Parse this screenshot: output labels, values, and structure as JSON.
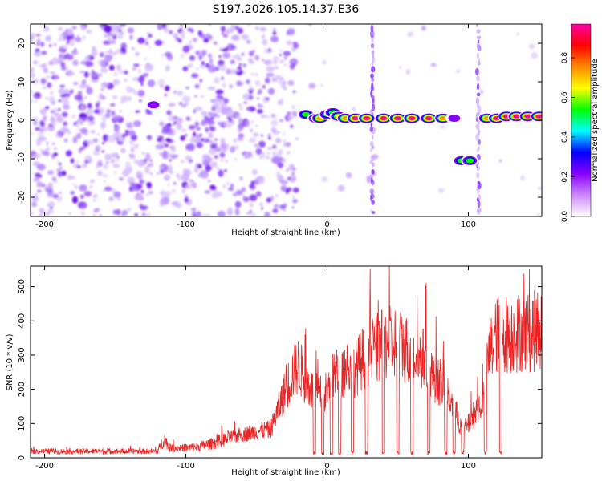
{
  "chart_data": [
    {
      "type": "heatmap",
      "title": "S197.2026.105.14.37.E36",
      "xlabel": "Height of straight line (km)",
      "ylabel": "Frequency (Hz)",
      "xlim": [
        -210,
        152
      ],
      "ylim": [
        -25,
        25
      ],
      "xticks": [
        -200,
        -100,
        0,
        100
      ],
      "xtick_labels": [
        "-200",
        "-100",
        "0",
        "100"
      ],
      "yticks": [
        -20,
        -10,
        0,
        10,
        20
      ],
      "ytick_labels": [
        "-20",
        "-10",
        "0",
        "10",
        "20"
      ],
      "colorbar": {
        "label": "Normalized spectral amplitude",
        "range": [
          0,
          0.97
        ],
        "ticks": [
          0.0,
          0.2,
          0.4,
          0.6,
          0.8
        ],
        "tick_labels": [
          "0.0",
          "0.2",
          "0.4",
          "0.6",
          "0.8"
        ],
        "colors": [
          "#ffffff",
          "#cc88ff",
          "#8800ff",
          "#0000ff",
          "#00ffff",
          "#00ff00",
          "#ffff00",
          "#ff8800",
          "#ff0000",
          "#ff00aa"
        ]
      },
      "noise_regions": [
        {
          "x_from": -210,
          "x_to": -20,
          "density": "high"
        },
        {
          "x_from": -20,
          "x_to": 152,
          "density": "low"
        }
      ],
      "gaps": [
        {
          "x_from": -124,
          "x_to": -120
        },
        {
          "x_from": -21,
          "x_to": -19
        }
      ],
      "vertical_streaks": [
        {
          "x": 32,
          "y_from": -25,
          "y_to": 25
        },
        {
          "x": 107,
          "y_from": -25,
          "y_to": 25
        }
      ],
      "blobs": [
        {
          "x": -123,
          "y": 4,
          "amplitude": 0.3
        },
        {
          "x": -15,
          "y": 1.5,
          "amplitude": 0.55
        },
        {
          "x": -8,
          "y": 0.5,
          "amplitude": 0.6
        },
        {
          "x": -5,
          "y": 0.5,
          "amplitude": 0.9
        },
        {
          "x": 0,
          "y": 1.5,
          "amplitude": 0.5
        },
        {
          "x": 4,
          "y": 2.0,
          "amplitude": 0.55
        },
        {
          "x": 8,
          "y": 1.0,
          "amplitude": 0.7
        },
        {
          "x": 13,
          "y": 0.5,
          "amplitude": 0.85
        },
        {
          "x": 20,
          "y": 0.5,
          "amplitude": 0.95
        },
        {
          "x": 28,
          "y": 0.5,
          "amplitude": 0.95
        },
        {
          "x": 40,
          "y": 0.5,
          "amplitude": 0.95
        },
        {
          "x": 50,
          "y": 0.5,
          "amplitude": 0.95
        },
        {
          "x": 60,
          "y": 0.5,
          "amplitude": 0.95
        },
        {
          "x": 72,
          "y": 0.5,
          "amplitude": 0.95
        },
        {
          "x": 82,
          "y": 0.5,
          "amplitude": 0.9
        },
        {
          "x": 90,
          "y": 0.5,
          "amplitude": 0.3
        },
        {
          "x": 95,
          "y": -10.5,
          "amplitude": 0.5
        },
        {
          "x": 101,
          "y": -10.5,
          "amplitude": 0.5
        },
        {
          "x": 113,
          "y": 0.5,
          "amplitude": 0.9
        },
        {
          "x": 120,
          "y": 0.5,
          "amplitude": 0.95
        },
        {
          "x": 127,
          "y": 1.0,
          "amplitude": 0.95
        },
        {
          "x": 134,
          "y": 1.0,
          "amplitude": 0.95
        },
        {
          "x": 142,
          "y": 1.0,
          "amplitude": 0.95
        },
        {
          "x": 150,
          "y": 1.0,
          "amplitude": 0.95
        }
      ]
    },
    {
      "type": "line",
      "title": "",
      "xlabel": "Height of straight line (km)",
      "ylabel": "SNR (10 * v/v)",
      "xlim": [
        -210,
        152
      ],
      "ylim": [
        0,
        560
      ],
      "xticks": [
        -200,
        -100,
        0,
        100
      ],
      "xtick_labels": [
        "-200",
        "-100",
        "0",
        "100"
      ],
      "yticks": [
        0,
        100,
        200,
        300,
        400,
        500
      ],
      "ytick_labels": [
        "0",
        "100",
        "200",
        "300",
        "400",
        "500"
      ],
      "series": [
        {
          "name": "SNR",
          "color": "#ee2222",
          "x": [
            -210,
            -200,
            -180,
            -160,
            -140,
            -120,
            -115,
            -112,
            -100,
            -90,
            -80,
            -70,
            -60,
            -50,
            -40,
            -30,
            -25,
            -20,
            -15,
            -10,
            -5,
            0,
            5,
            10,
            15,
            20,
            25,
            30,
            35,
            40,
            45,
            50,
            55,
            60,
            65,
            70,
            75,
            80,
            85,
            90,
            95,
            100,
            105,
            110,
            115,
            120,
            125,
            130,
            135,
            140,
            145,
            150
          ],
          "y": [
            20,
            20,
            20,
            20,
            20,
            20,
            60,
            30,
            30,
            35,
            45,
            60,
            70,
            80,
            85,
            200,
            250,
            280,
            230,
            200,
            190,
            200,
            250,
            260,
            280,
            270,
            300,
            320,
            330,
            340,
            350,
            350,
            330,
            330,
            300,
            300,
            250,
            230,
            200,
            150,
            90,
            100,
            140,
            170,
            320,
            370,
            380,
            370,
            380,
            380,
            380,
            390
          ],
          "dips": [
            -9,
            -3,
            3,
            9,
            18,
            28,
            40,
            50,
            60,
            72,
            84,
            90,
            96,
            112,
            123
          ]
        }
      ]
    }
  ]
}
